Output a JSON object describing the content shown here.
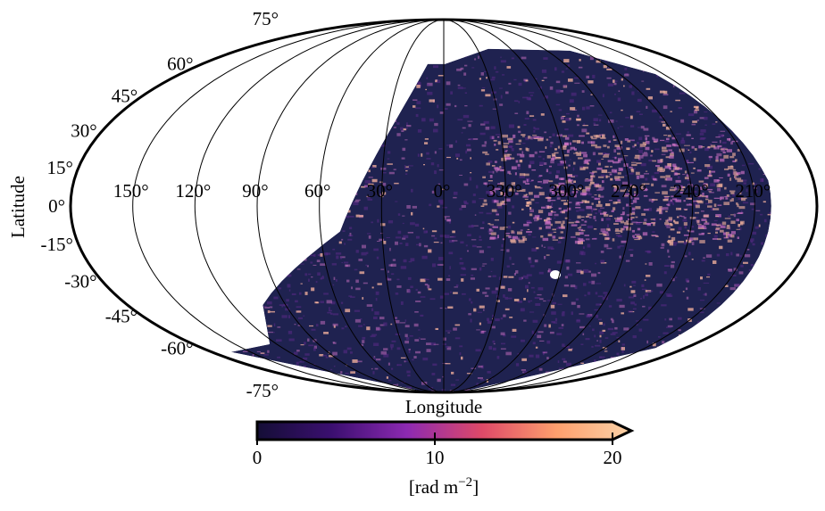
{
  "chart_data": {
    "type": "heatmap",
    "projection": "mollweide",
    "title": "",
    "xlabel": "Longitude",
    "ylabel": "Latitude",
    "grid": true,
    "lat_ticks": [
      {
        "value": 75,
        "label": "75°"
      },
      {
        "value": 60,
        "label": "60°"
      },
      {
        "value": 45,
        "label": "45°"
      },
      {
        "value": 30,
        "label": "30°"
      },
      {
        "value": 15,
        "label": "15°"
      },
      {
        "value": 0,
        "label": "0°"
      },
      {
        "value": -15,
        "label": "-15°"
      },
      {
        "value": -30,
        "label": "-30°"
      },
      {
        "value": -45,
        "label": "-45°"
      },
      {
        "value": -60,
        "label": "-60°"
      },
      {
        "value": -75,
        "label": "-75°"
      }
    ],
    "lon_ticks": [
      {
        "value": 150,
        "label": "150°"
      },
      {
        "value": 120,
        "label": "120°"
      },
      {
        "value": 90,
        "label": "90°"
      },
      {
        "value": 60,
        "label": "60°"
      },
      {
        "value": 30,
        "label": "30°"
      },
      {
        "value": 0,
        "label": "0°"
      },
      {
        "value": 330,
        "label": "330°"
      },
      {
        "value": 300,
        "label": "300°"
      },
      {
        "value": 270,
        "label": "270°"
      },
      {
        "value": 240,
        "label": "240°"
      },
      {
        "value": 210,
        "label": "210°"
      }
    ],
    "colorbar": {
      "label": "[rad m",
      "label_exponent": "−2",
      "label_close": "]",
      "vmin": 0,
      "vmax": 20,
      "extend": "max",
      "colormap": "magma",
      "colors": [
        "#140e36",
        "#3b0f70",
        "#8c29b2",
        "#de4968",
        "#fe9f6d",
        "#fcd3a8"
      ],
      "ticks": [
        {
          "value": 0,
          "label": "0"
        },
        {
          "value": 10,
          "label": "10"
        },
        {
          "value": 20,
          "label": "20"
        }
      ]
    },
    "coverage_colors": {
      "background": "#1f2250",
      "mid": "#5a2a86",
      "hot": "#e07ad0",
      "peak": "#fcb7a0"
    }
  }
}
